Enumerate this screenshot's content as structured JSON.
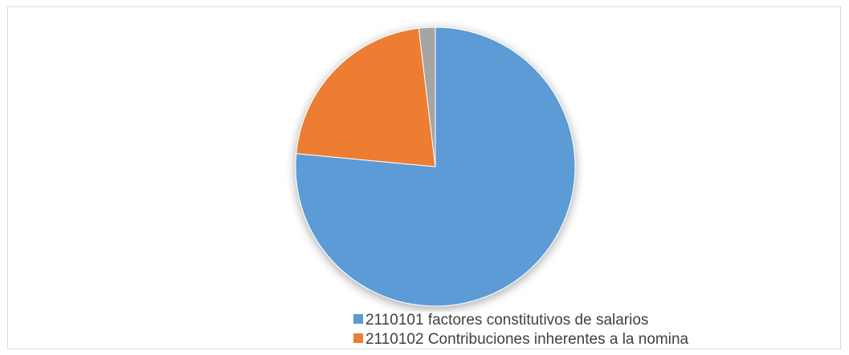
{
  "chart_data": {
    "type": "pie",
    "title": "",
    "slices": [
      {
        "label": "2110101 factores constitutivos de salarios",
        "value": 76.5,
        "color": "#5b9bd5"
      },
      {
        "label": "2110102 Contribuciones inherentes a la nomina",
        "value": 21.6,
        "color": "#ed7d31"
      },
      {
        "label": "",
        "value": 1.9,
        "color": "#a5a5a5"
      }
    ],
    "legend": {
      "position": "bottom-right",
      "entries": [
        {
          "label": "2110101 factores constitutivos de salarios",
          "color": "#5b9bd5"
        },
        {
          "label": "2110102 Contribuciones inherentes a la nomina",
          "color": "#ed7d31"
        }
      ]
    }
  }
}
